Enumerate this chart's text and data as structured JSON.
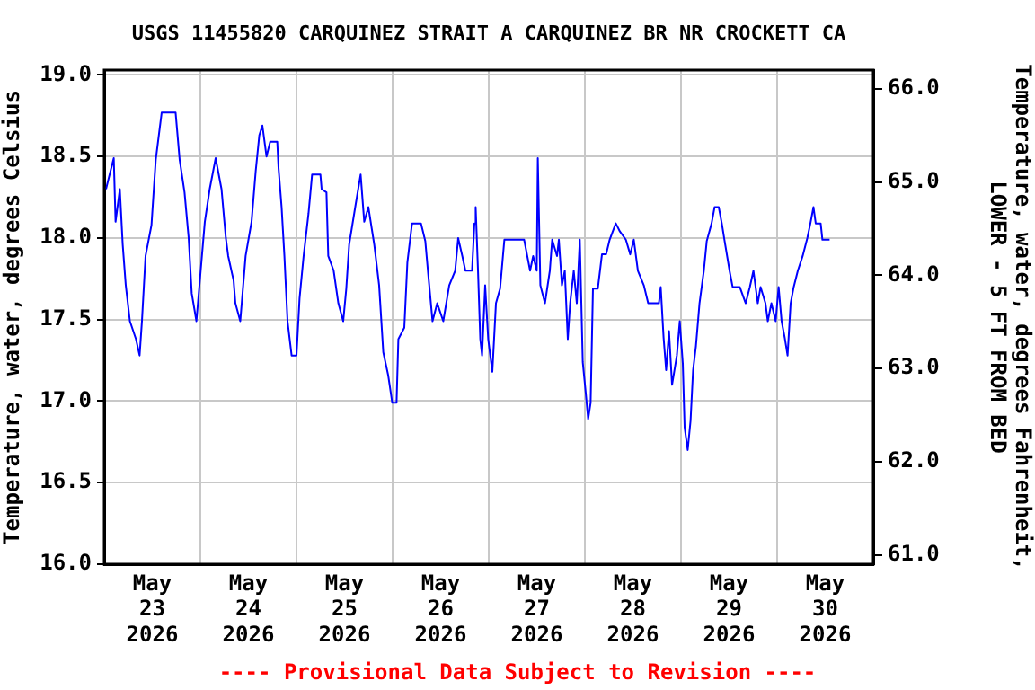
{
  "chart_data": {
    "type": "line",
    "title": "USGS 11455820 CARQUINEZ STRAIT A CARQUINEZ BR NR CROCKETT CA",
    "ylabel": "Temperature, water, degrees Celsius",
    "y2label": "Temperature, water, degrees Fahrenheit,\nLOWER - 5 FT FROM BED",
    "annotations": [
      "---- Provisional Data Subject to Revision ----"
    ],
    "xlim": [
      "2026-05-23T00:00",
      "2026-05-31T00:00"
    ],
    "xticks": [
      {
        "value": "2026-05-23T00:00",
        "label": null
      },
      {
        "value": "2026-05-23T12:00",
        "label": "May\n23\n2026"
      },
      {
        "value": "2026-05-24T00:00",
        "label": null
      },
      {
        "value": "2026-05-24T12:00",
        "label": "May\n24\n2026"
      },
      {
        "value": "2026-05-25T00:00",
        "label": null
      },
      {
        "value": "2026-05-25T12:00",
        "label": "May\n25\n2026"
      },
      {
        "value": "2026-05-26T00:00",
        "label": null
      },
      {
        "value": "2026-05-26T12:00",
        "label": "May\n26\n2026"
      },
      {
        "value": "2026-05-27T00:00",
        "label": null
      },
      {
        "value": "2026-05-27T12:00",
        "label": "May\n27\n2026"
      },
      {
        "value": "2026-05-28T00:00",
        "label": null
      },
      {
        "value": "2026-05-28T12:00",
        "label": "May\n28\n2026"
      },
      {
        "value": "2026-05-29T00:00",
        "label": null
      },
      {
        "value": "2026-05-29T12:00",
        "label": "May\n29\n2026"
      },
      {
        "value": "2026-05-30T00:00",
        "label": null
      },
      {
        "value": "2026-05-30T12:00",
        "label": "May\n30\n2026"
      },
      {
        "value": "2026-05-31T00:00",
        "label": null
      }
    ],
    "ylim": [
      16,
      19.03
    ],
    "yticks": [
      {
        "value": 16,
        "label": "16.0"
      },
      {
        "value": 16.5,
        "label": "16.5"
      },
      {
        "value": 17,
        "label": "17.0"
      },
      {
        "value": 17.5,
        "label": "17.5"
      },
      {
        "value": 18,
        "label": "18.0"
      },
      {
        "value": 18.5,
        "label": "18.5"
      },
      {
        "value": 19,
        "label": "19.0"
      }
    ],
    "y2lim": [
      60.9,
      66.2
    ],
    "y2ticks": [
      {
        "value": 61,
        "label": "61.0"
      },
      {
        "value": 62,
        "label": "62.0"
      },
      {
        "value": 63,
        "label": "63.0"
      },
      {
        "value": 64,
        "label": "64.0"
      },
      {
        "value": 65,
        "label": "65.0"
      },
      {
        "value": 66,
        "label": "66.0"
      }
    ],
    "grid": true,
    "legend": false,
    "series": [
      {
        "color": "#0000ff",
        "x": [
          "2026-05-23T00:27",
          "2026-05-23T01:21",
          "2026-05-23T02:23",
          "2026-05-23T02:50",
          "2026-05-23T03:54",
          "2026-05-23T04:37",
          "2026-05-23T05:23",
          "2026-05-23T06:25",
          "2026-05-23T07:56",
          "2026-05-23T08:50",
          "2026-05-23T09:25",
          "2026-05-23T10:19",
          "2026-05-23T11:48",
          "2026-05-23T12:52",
          "2026-05-23T14:21",
          "2026-05-23T17:49",
          "2026-05-23T18:50",
          "2026-05-23T20:03",
          "2026-05-23T21:05",
          "2026-05-23T21:51",
          "2026-05-23T23:01",
          "2026-05-24T00:05",
          "2026-05-24T01:07",
          "2026-05-24T02:20",
          "2026-05-24T03:49",
          "2026-05-24T05:17",
          "2026-05-24T06:22",
          "2026-05-24T06:57",
          "2026-05-24T08:18",
          "2026-05-24T08:45",
          "2026-05-24T09:58",
          "2026-05-24T11:18",
          "2026-05-24T12:47",
          "2026-05-24T13:49",
          "2026-05-24T14:43",
          "2026-05-24T15:29",
          "2026-05-24T16:31",
          "2026-05-24T17:25",
          "2026-05-24T19:12",
          "2026-05-24T19:31",
          "2026-05-24T20:17",
          "2026-05-24T20:59",
          "2026-05-24T21:46",
          "2026-05-24T22:47",
          "2026-05-25T00:00",
          "2026-05-25T00:46",
          "2026-05-25T01:47",
          "2026-05-25T03:00",
          "2026-05-25T03:54",
          "2026-05-25T05:58",
          "2026-05-25T06:17",
          "2026-05-25T07:29",
          "2026-05-25T07:56",
          "2026-05-25T09:17",
          "2026-05-25T10:27",
          "2026-05-25T11:40",
          "2026-05-25T12:26",
          "2026-05-25T13:09",
          "2026-05-25T14:40",
          "2026-05-25T16:01",
          "2026-05-25T16:55",
          "2026-05-25T17:57",
          "2026-05-25T19:25",
          "2026-05-25T20:38",
          "2026-05-25T21:40",
          "2026-05-25T22:53",
          "2026-05-25T23:55",
          "2026-05-26T00:59",
          "2026-05-26T01:26",
          "2026-05-26T02:55",
          "2026-05-26T03:41",
          "2026-05-26T04:51",
          "2026-05-26T07:05",
          "2026-05-26T08:10",
          "2026-05-26T08:53",
          "2026-05-26T09:58",
          "2026-05-26T11:08",
          "2026-05-26T12:39",
          "2026-05-26T14:08",
          "2026-05-26T15:37",
          "2026-05-26T16:22",
          "2026-05-26T17:24",
          "2026-05-26T18:10",
          "2026-05-26T19:50",
          "2026-05-26T20:25",
          "2026-05-26T20:44",
          "2026-05-26T21:19",
          "2026-05-26T21:53",
          "2026-05-26T22:20",
          "2026-05-26T23:06",
          "2026-05-26T23:52",
          "2026-05-27T00:54",
          "2026-05-27T01:48",
          "2026-05-27T02:50",
          "2026-05-27T03:54",
          "2026-05-27T08:50",
          "2026-05-27T10:19",
          "2026-05-27T11:05",
          "2026-05-27T11:59",
          "2026-05-27T12:15",
          "2026-05-27T12:53",
          "2026-05-27T14:02",
          "2026-05-27T15:15",
          "2026-05-27T15:50",
          "2026-05-27T17:03",
          "2026-05-27T17:30",
          "2026-05-27T18:16",
          "2026-05-27T18:59",
          "2026-05-27T19:44",
          "2026-05-27T20:19",
          "2026-05-27T21:13",
          "2026-05-27T21:59",
          "2026-05-27T22:44",
          "2026-05-27T23:28",
          "2026-05-28T00:13",
          "2026-05-28T00:49",
          "2026-05-28T01:26",
          "2026-05-28T02:01",
          "2026-05-28T03:14",
          "2026-05-28T04:16",
          "2026-05-28T05:18",
          "2026-05-28T06:11",
          "2026-05-28T07:43",
          "2026-05-28T08:45",
          "2026-05-28T10:14",
          "2026-05-28T11:19",
          "2026-05-28T12:13",
          "2026-05-28T13:14",
          "2026-05-28T14:43",
          "2026-05-28T15:48",
          "2026-05-28T18:29",
          "2026-05-28T18:56",
          "2026-05-28T19:39",
          "2026-05-28T20:17",
          "2026-05-28T21:00",
          "2026-05-28T21:46",
          "2026-05-28T22:58",
          "2026-05-28T23:41",
          "2026-05-29T00:27",
          "2026-05-29T00:54",
          "2026-05-29T01:40",
          "2026-05-29T02:23",
          "2026-05-29T03:01",
          "2026-05-29T03:44",
          "2026-05-29T04:37",
          "2026-05-29T05:42",
          "2026-05-29T06:25",
          "2026-05-29T07:38",
          "2026-05-29T08:23",
          "2026-05-29T09:25",
          "2026-05-29T10:11",
          "2026-05-29T10:54",
          "2026-05-29T12:07",
          "2026-05-29T12:53",
          "2026-05-29T14:40",
          "2026-05-29T16:09",
          "2026-05-29T17:11",
          "2026-05-29T18:05",
          "2026-05-29T19:10",
          "2026-05-29T19:52",
          "2026-05-29T21:05",
          "2026-05-29T21:40",
          "2026-05-29T22:34",
          "2026-05-29T23:38",
          "2026-05-30T00:22",
          "2026-05-30T01:07",
          "2026-05-30T01:53",
          "2026-05-30T02:36",
          "2026-05-30T03:22",
          "2026-05-30T04:08",
          "2026-05-30T05:10",
          "2026-05-30T06:22",
          "2026-05-30T07:32",
          "2026-05-30T08:18",
          "2026-05-30T09:04",
          "2026-05-30T09:38",
          "2026-05-30T10:52",
          "2026-05-30T11:18",
          "2026-05-30T13:06"
        ],
        "values": [
          18.3,
          18.39,
          18.49,
          18.1,
          18.3,
          17.96,
          17.71,
          17.49,
          17.38,
          17.28,
          17.49,
          17.89,
          18.08,
          18.48,
          18.77,
          18.77,
          18.48,
          18.28,
          18.0,
          17.66,
          17.49,
          17.8,
          18.1,
          18.3,
          18.49,
          18.3,
          18.0,
          17.89,
          17.74,
          17.6,
          17.49,
          17.89,
          18.1,
          18.41,
          18.63,
          18.69,
          18.5,
          18.59,
          18.59,
          18.43,
          18.19,
          17.89,
          17.49,
          17.28,
          17.28,
          17.63,
          17.89,
          18.15,
          18.39,
          18.39,
          18.3,
          18.28,
          17.89,
          17.8,
          17.6,
          17.49,
          17.69,
          17.96,
          18.19,
          18.39,
          18.1,
          18.19,
          17.96,
          17.71,
          17.3,
          17.16,
          16.99,
          16.99,
          17.38,
          17.45,
          17.85,
          18.09,
          18.09,
          17.98,
          17.78,
          17.49,
          17.6,
          17.49,
          17.71,
          17.8,
          18.0,
          17.89,
          17.8,
          17.8,
          18.09,
          18.19,
          17.8,
          17.38,
          17.28,
          17.71,
          17.38,
          17.18,
          17.6,
          17.69,
          17.99,
          17.99,
          17.8,
          17.89,
          17.8,
          18.49,
          17.71,
          17.6,
          17.8,
          17.99,
          17.89,
          17.99,
          17.71,
          17.8,
          17.38,
          17.6,
          17.8,
          17.6,
          17.99,
          17.24,
          17.05,
          16.89,
          16.99,
          17.69,
          17.69,
          17.9,
          17.9,
          17.99,
          18.09,
          18.04,
          17.99,
          17.9,
          17.99,
          17.8,
          17.71,
          17.6,
          17.6,
          17.7,
          17.39,
          17.19,
          17.43,
          17.1,
          17.28,
          17.49,
          17.23,
          16.84,
          16.7,
          16.88,
          17.19,
          17.34,
          17.6,
          17.8,
          17.98,
          18.09,
          18.19,
          18.19,
          18.09,
          17.98,
          17.8,
          17.7,
          17.7,
          17.6,
          17.7,
          17.8,
          17.6,
          17.7,
          17.6,
          17.49,
          17.6,
          17.49,
          17.7,
          17.49,
          17.39,
          17.28,
          17.6,
          17.7,
          17.8,
          17.89,
          18.0,
          18.09,
          18.19,
          18.09,
          18.09,
          17.99,
          17.99
        ]
      }
    ]
  }
}
